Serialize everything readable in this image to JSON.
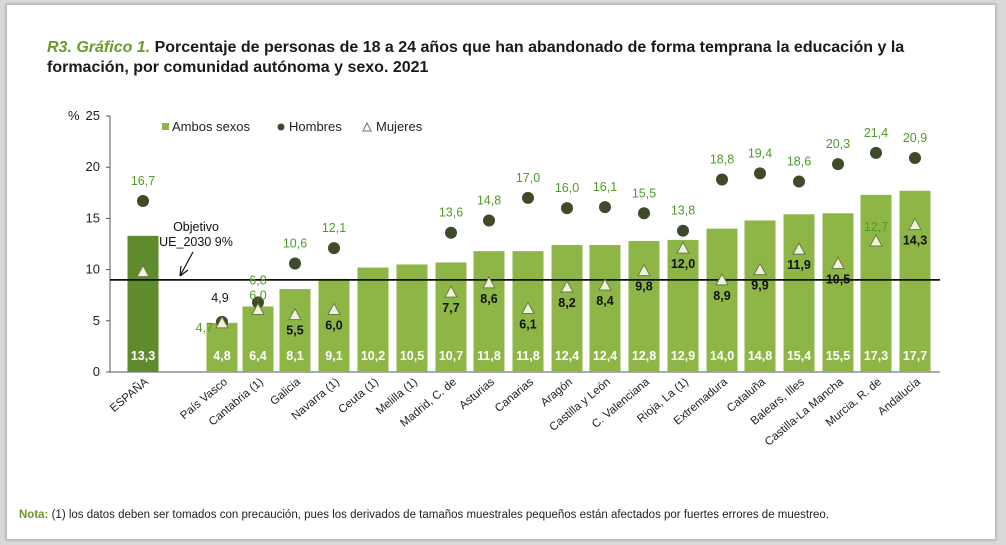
{
  "title": {
    "prefix": "R3. Gráfico 1.",
    "text": "Porcentaje de personas de 18 a 24 años que han abandonado de forma temprana la educación y la formación, por comunidad autónoma y sexo. 2021"
  },
  "note": {
    "label": "Nota:",
    "text": "(1) los datos deben ser tomados con precaución, pues los derivados de tamaños muestrales pequeños están afectados por fuertes errores de muestreo."
  },
  "colors": {
    "bar": "#8db646",
    "bar_spain": "#5f8b2c",
    "hombres": "#3e4a2a",
    "mujeres_fill": "#eef2d8",
    "mujeres_stroke": "#6a7a4a",
    "label_green": "#4f9a2a",
    "label_dark": "#111111",
    "label_white": "#ffffff"
  },
  "chart_data": {
    "type": "bar",
    "ylabel": "%",
    "ylim": [
      0,
      25
    ],
    "yticks": [
      "0",
      "5",
      "10",
      "15",
      "20",
      "25"
    ],
    "legend": {
      "placement": "top-left",
      "items": [
        "Ambos sexos",
        "Hombres",
        "Mujeres"
      ]
    },
    "reference_line": {
      "value": 9,
      "label_line1": "Objetivo",
      "label_line2": "UE_2030 9%"
    },
    "categories": [
      "ESPAÑA",
      "País Vasco",
      "Cantabria (1)",
      "Galicia",
      "Navarra (1)",
      "Ceuta (1)",
      "Melilla (1)",
      "Madrid, C. de",
      "Asturias",
      "Canarias",
      "Aragón",
      "Castilla y León",
      "C. Valenciana",
      "Rioja, La (1)",
      "Extremadura",
      "Cataluña",
      "Balears, Illes",
      "Castilla-La Mancha",
      "Murcia, R. de",
      "Andalucía"
    ],
    "series": [
      {
        "name": "Ambos sexos",
        "values": [
          13.3,
          4.8,
          6.4,
          8.1,
          9.1,
          10.2,
          10.5,
          10.7,
          11.8,
          11.8,
          12.4,
          12.4,
          12.8,
          12.9,
          14.0,
          14.8,
          15.4,
          15.5,
          17.3,
          17.7
        ],
        "labels": [
          "13,3",
          "4,8",
          "6,4",
          "8,1",
          "9,1",
          "10,2",
          "10,5",
          "10,7",
          "11,8",
          "11,8",
          "12,4",
          "12,4",
          "12,8",
          "12,9",
          "14,0",
          "14,8",
          "15,4",
          "15,5",
          "17,3",
          "17,7"
        ]
      },
      {
        "name": "Hombres",
        "values": [
          16.7,
          4.9,
          6.8,
          10.6,
          12.1,
          null,
          null,
          13.6,
          14.8,
          17.0,
          16.0,
          16.1,
          15.5,
          13.8,
          18.8,
          19.4,
          18.6,
          20.3,
          21.4,
          20.9
        ],
        "labels": [
          "16,7",
          "4,9",
          "6,8",
          "10,6",
          "12,1",
          "",
          "",
          "13,6",
          "14,8",
          "17,0",
          "16,0",
          "16,1",
          "15,5",
          "13,8",
          "18,8",
          "19,4",
          "18,6",
          "20,3",
          "21,4",
          "20,9"
        ]
      },
      {
        "name": "Mujeres",
        "values": [
          9.7,
          4.7,
          6.0,
          5.5,
          6.0,
          null,
          null,
          7.7,
          8.6,
          6.1,
          8.2,
          8.4,
          9.8,
          12.0,
          8.9,
          9.9,
          11.9,
          10.5,
          12.7,
          14.3
        ],
        "labels": [
          "9,7",
          "4,7",
          "6,0",
          "5,5",
          "6,0",
          "",
          "",
          "7,7",
          "8,6",
          "6,1",
          "8,2",
          "8,4",
          "9,8",
          "12,0",
          "8,9",
          "9,9",
          "11,9",
          "10,5",
          "12,7",
          "14,3"
        ]
      }
    ]
  }
}
